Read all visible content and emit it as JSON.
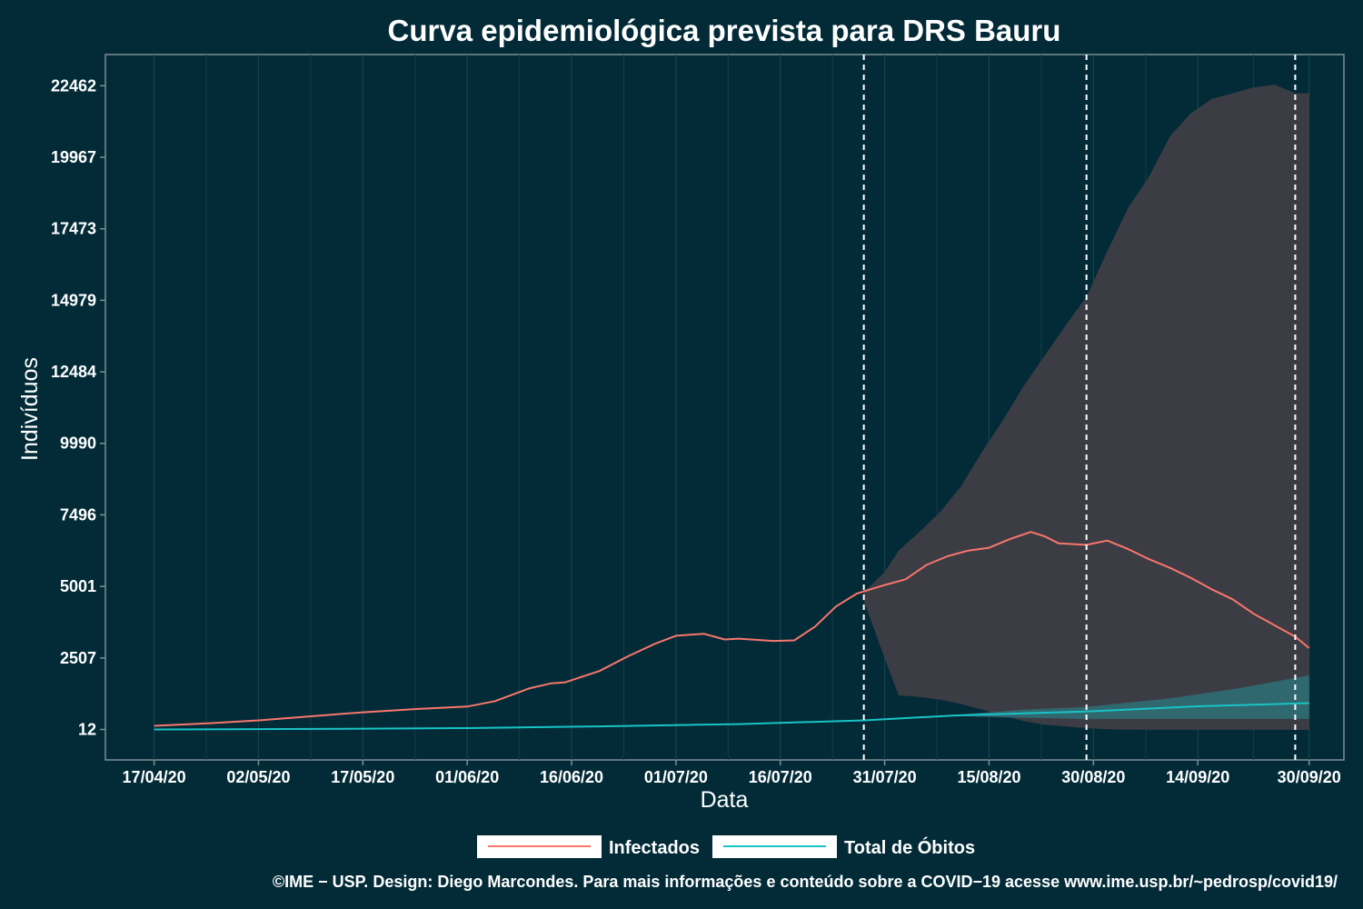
{
  "chart_data": {
    "type": "line",
    "title": "Curva epidemiológica prevista para DRS Bauru",
    "xlabel": "Data",
    "ylabel": "Indivíduos",
    "x_tick_labels": [
      "17/04/20",
      "02/05/20",
      "17/05/20",
      "01/06/20",
      "16/06/20",
      "01/07/20",
      "16/07/20",
      "31/07/20",
      "15/08/20",
      "30/08/20",
      "14/09/20",
      "30/09/20"
    ],
    "y_tick_labels": [
      "12",
      "2507",
      "5001",
      "7496",
      "9990",
      "12484",
      "14979",
      "17473",
      "19967",
      "22462"
    ],
    "ylim": [
      -1050,
      23550
    ],
    "grid": true,
    "legend_position": "bottom",
    "vertical_markers": [
      "2020-07-28",
      "2020-08-29",
      "2020-09-28"
    ],
    "series": [
      {
        "name": "Infectados",
        "color": "#f8766d",
        "x": [
          "2020-04-17",
          "2020-04-25",
          "2020-05-02",
          "2020-05-10",
          "2020-05-17",
          "2020-05-25",
          "2020-06-01",
          "2020-06-05",
          "2020-06-10",
          "2020-06-13",
          "2020-06-15",
          "2020-06-20",
          "2020-06-24",
          "2020-06-28",
          "2020-07-01",
          "2020-07-05",
          "2020-07-08",
          "2020-07-10",
          "2020-07-15",
          "2020-07-18",
          "2020-07-21",
          "2020-07-24",
          "2020-07-27",
          "2020-07-31",
          "2020-08-03",
          "2020-08-06",
          "2020-08-09",
          "2020-08-12",
          "2020-08-15",
          "2020-08-18",
          "2020-08-21",
          "2020-08-23",
          "2020-08-25",
          "2020-08-29",
          "2020-09-01",
          "2020-09-04",
          "2020-09-07",
          "2020-09-10",
          "2020-09-13",
          "2020-09-16",
          "2020-09-19",
          "2020-09-22",
          "2020-09-25",
          "2020-09-28",
          "2020-09-30"
        ],
        "y": [
          140,
          230,
          330,
          480,
          610,
          730,
          810,
          1000,
          1450,
          1620,
          1650,
          2050,
          2550,
          3000,
          3280,
          3350,
          3150,
          3180,
          3100,
          3120,
          3600,
          4300,
          4750,
          5050,
          5250,
          5750,
          6050,
          6250,
          6350,
          6650,
          6900,
          6750,
          6500,
          6450,
          6600,
          6300,
          5950,
          5650,
          5300,
          4900,
          4550,
          4050,
          3650,
          3250,
          2850
        ]
      },
      {
        "name": "Total de Óbitos",
        "color": "#19c3c6",
        "x": [
          "2020-04-17",
          "2020-05-10",
          "2020-06-01",
          "2020-06-20",
          "2020-07-10",
          "2020-07-28",
          "2020-08-10",
          "2020-08-29",
          "2020-09-14",
          "2020-09-30"
        ],
        "y": [
          12,
          30,
          60,
          120,
          200,
          330,
          500,
          640,
          820,
          930
        ]
      }
    ],
    "bands": [
      {
        "series": "Infectados",
        "color": "#3f3d44",
        "x": [
          "2020-07-28",
          "2020-07-31",
          "2020-08-02",
          "2020-08-05",
          "2020-08-08",
          "2020-08-11",
          "2020-08-14",
          "2020-08-17",
          "2020-08-20",
          "2020-08-23",
          "2020-08-26",
          "2020-08-29",
          "2020-09-01",
          "2020-09-04",
          "2020-09-07",
          "2020-09-10",
          "2020-09-13",
          "2020-09-16",
          "2020-09-19",
          "2020-09-22",
          "2020-09-25",
          "2020-09-28",
          "2020-09-30"
        ],
        "upper": [
          4800,
          5500,
          6250,
          6900,
          7600,
          8500,
          9700,
          10800,
          12000,
          13050,
          14100,
          15100,
          16700,
          18200,
          19300,
          20700,
          21500,
          22000,
          22200,
          22400,
          22500,
          22200,
          22200
        ],
        "lower": [
          4500,
          2500,
          1200,
          1150,
          1050,
          900,
          700,
          500,
          300,
          180,
          120,
          60,
          20,
          5,
          0,
          0,
          0,
          0,
          0,
          0,
          0,
          0,
          0
        ]
      },
      {
        "series": "Total de Óbitos",
        "color": "#2f6a72",
        "x": [
          "2020-07-28",
          "2020-08-10",
          "2020-08-20",
          "2020-08-29",
          "2020-09-10",
          "2020-09-20",
          "2020-09-30"
        ],
        "upper": [
          330,
          520,
          700,
          800,
          1100,
          1450,
          1900
        ],
        "lower": [
          330,
          480,
          420,
          380,
          380,
          380,
          380
        ]
      }
    ]
  },
  "footer": "©IME − USP. Design: Diego Marcondes. Para mais informações e conteúdo sobre a COVID−19 acesse www.ime.usp.br/~pedrosp/covid19/"
}
